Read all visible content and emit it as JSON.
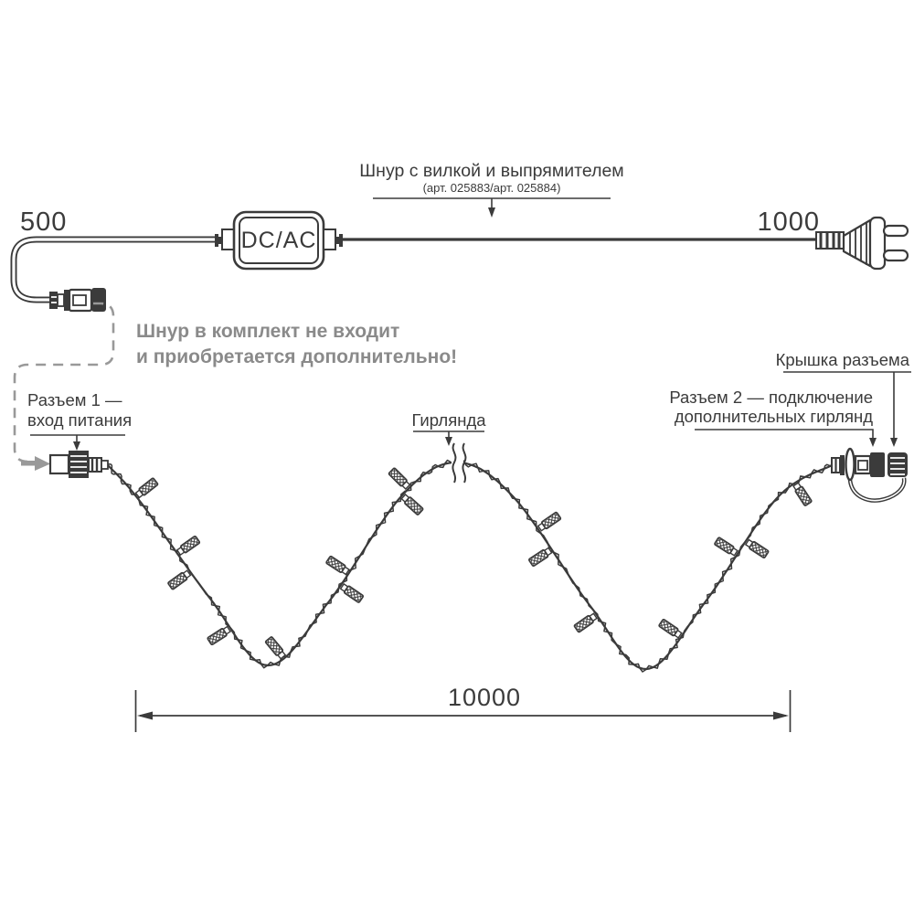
{
  "colors": {
    "ink": "#3b3b3b",
    "dashed_gray": "#999999",
    "note_gray": "#8a8a8a"
  },
  "cord_label": {
    "title": "Шнур с вилкой и выпрямителем",
    "subtitle": "(арт. 025883/арт. 025884)"
  },
  "dimensions": {
    "cord_left": "500",
    "cord_right": "1000",
    "garland_total": "10000"
  },
  "converter": {
    "label": "DC/AC"
  },
  "note": {
    "line1": "Шнур в комплект не входит",
    "line2": "и приобретается дополнительно!"
  },
  "connector1": {
    "line1": "Разъем 1 —",
    "line2": "вход питания"
  },
  "garland": {
    "label": "Гирлянда"
  },
  "connector2": {
    "line1": "Разъем 2 — подключение",
    "line2": "дополнительных гирлянд"
  },
  "cap": {
    "label": "Крышка разъема"
  }
}
